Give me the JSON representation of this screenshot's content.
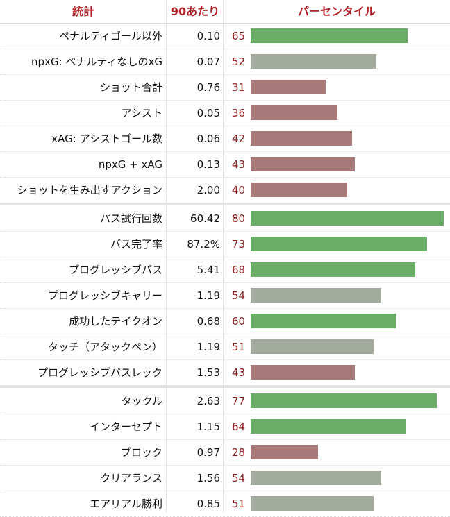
{
  "table": {
    "headers": {
      "stat": "統計",
      "per90": "90あたり",
      "percentile": "パーセンタイル"
    },
    "colors": {
      "high": "#6aad67",
      "mid": "#a3ab9f",
      "low": "#a87979"
    },
    "groups": [
      {
        "rows": [
          {
            "stat": "ペナルティゴール以外",
            "per90": "0.10",
            "pct": 65
          },
          {
            "stat": "npxG: ペナルティなしのxG",
            "per90": "0.07",
            "pct": 52
          },
          {
            "stat": "ショット合計",
            "per90": "0.76",
            "pct": 31
          },
          {
            "stat": "アシスト",
            "per90": "0.05",
            "pct": 36
          },
          {
            "stat": "xAG: アシストゴール数",
            "per90": "0.06",
            "pct": 42
          },
          {
            "stat": "npxG + xAG",
            "per90": "0.13",
            "pct": 43
          },
          {
            "stat": "ショットを生み出すアクション",
            "per90": "2.00",
            "pct": 40
          }
        ]
      },
      {
        "rows": [
          {
            "stat": "パス試行回数",
            "per90": "60.42",
            "pct": 80
          },
          {
            "stat": "パス完了率",
            "per90": "87.2%",
            "pct": 73
          },
          {
            "stat": "プログレッシブパス",
            "per90": "5.41",
            "pct": 68
          },
          {
            "stat": "プログレッシブキャリー",
            "per90": "1.19",
            "pct": 54
          },
          {
            "stat": "成功したテイクオン",
            "per90": "0.68",
            "pct": 60
          },
          {
            "stat": "タッチ（アタックペン）",
            "per90": "1.19",
            "pct": 51
          },
          {
            "stat": "プログレッシブパスレック",
            "per90": "1.53",
            "pct": 43
          }
        ]
      },
      {
        "rows": [
          {
            "stat": "タックル",
            "per90": "2.63",
            "pct": 77
          },
          {
            "stat": "インターセプト",
            "per90": "1.15",
            "pct": 64
          },
          {
            "stat": "ブロック",
            "per90": "0.97",
            "pct": 28
          },
          {
            "stat": "クリアランス",
            "per90": "1.56",
            "pct": 54
          },
          {
            "stat": "エアリアル勝利",
            "per90": "0.85",
            "pct": 51
          }
        ]
      }
    ]
  },
  "chart_data": {
    "type": "bar",
    "orientation": "horizontal",
    "title": "",
    "xlabel": "パーセンタイル",
    "ylabel": "統計",
    "xlim": [
      0,
      100
    ],
    "categories": [
      "ペナルティゴール以外",
      "npxG: ペナルティなしのxG",
      "ショット合計",
      "アシスト",
      "xAG: アシストゴール数",
      "npxG + xAG",
      "ショットを生み出すアクション",
      "パス試行回数",
      "パス完了率",
      "プログレッシブパス",
      "プログレッシブキャリー",
      "成功したテイクオン",
      "タッチ（アタックペン）",
      "プログレッシブパスレック",
      "タックル",
      "インターセプト",
      "ブロック",
      "クリアランス",
      "エアリアル勝利"
    ],
    "values": [
      65,
      52,
      31,
      36,
      42,
      43,
      40,
      80,
      73,
      68,
      54,
      60,
      51,
      43,
      77,
      64,
      28,
      54,
      51
    ]
  }
}
